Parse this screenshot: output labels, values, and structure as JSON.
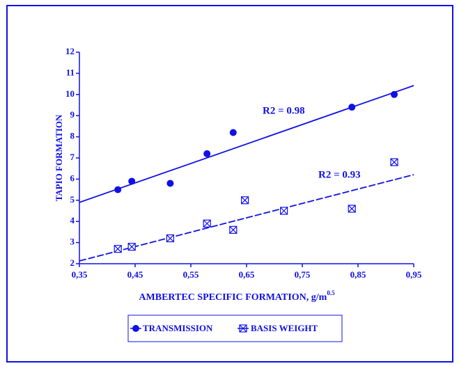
{
  "chart_data": {
    "type": "scatter",
    "x_label": "AMBERTEC SPECIFIC FORMATION, g/m",
    "x_label_sup": "0.5",
    "y_label": "TAPIO FORMATION",
    "xlim": [
      0.35,
      0.95
    ],
    "xticks": [
      {
        "value": 0.35,
        "label": "0,35"
      },
      {
        "value": 0.45,
        "label": "0,45"
      },
      {
        "value": 0.55,
        "label": "0,55"
      },
      {
        "value": 0.65,
        "label": "0,65"
      },
      {
        "value": 0.75,
        "label": "0,75"
      },
      {
        "value": 0.85,
        "label": "0,85"
      },
      {
        "value": 0.95,
        "label": "0,95"
      }
    ],
    "ylim": [
      2,
      12
    ],
    "yticks": [
      2,
      3,
      4,
      5,
      6,
      7,
      8,
      9,
      10,
      11,
      12
    ],
    "color": "#1010e8",
    "series": [
      {
        "name": "TRANSMISSION",
        "marker": "circle",
        "line_style": "solid",
        "x": [
          0.419,
          0.444,
          0.513,
          0.579,
          0.626,
          0.839,
          0.915
        ],
        "values": [
          5.5,
          5.9,
          5.8,
          7.2,
          8.2,
          9.4,
          10.0
        ],
        "trend": {
          "x": [
            0.35,
            0.95
          ],
          "values": [
            4.9,
            10.42
          ]
        },
        "annotation": "R2 = 0.98"
      },
      {
        "name": "BASIS WEIGHT",
        "marker": "boxed-x",
        "line_style": "dashed",
        "x": [
          0.419,
          0.444,
          0.513,
          0.579,
          0.626,
          0.647,
          0.717,
          0.839,
          0.915
        ],
        "values": [
          2.7,
          2.8,
          3.2,
          3.9,
          3.6,
          5.0,
          4.5,
          4.6,
          6.8
        ],
        "trend": {
          "x": [
            0.35,
            0.95
          ],
          "values": [
            2.13,
            6.21
          ]
        },
        "annotation": "R2 = 0.93"
      }
    ]
  }
}
